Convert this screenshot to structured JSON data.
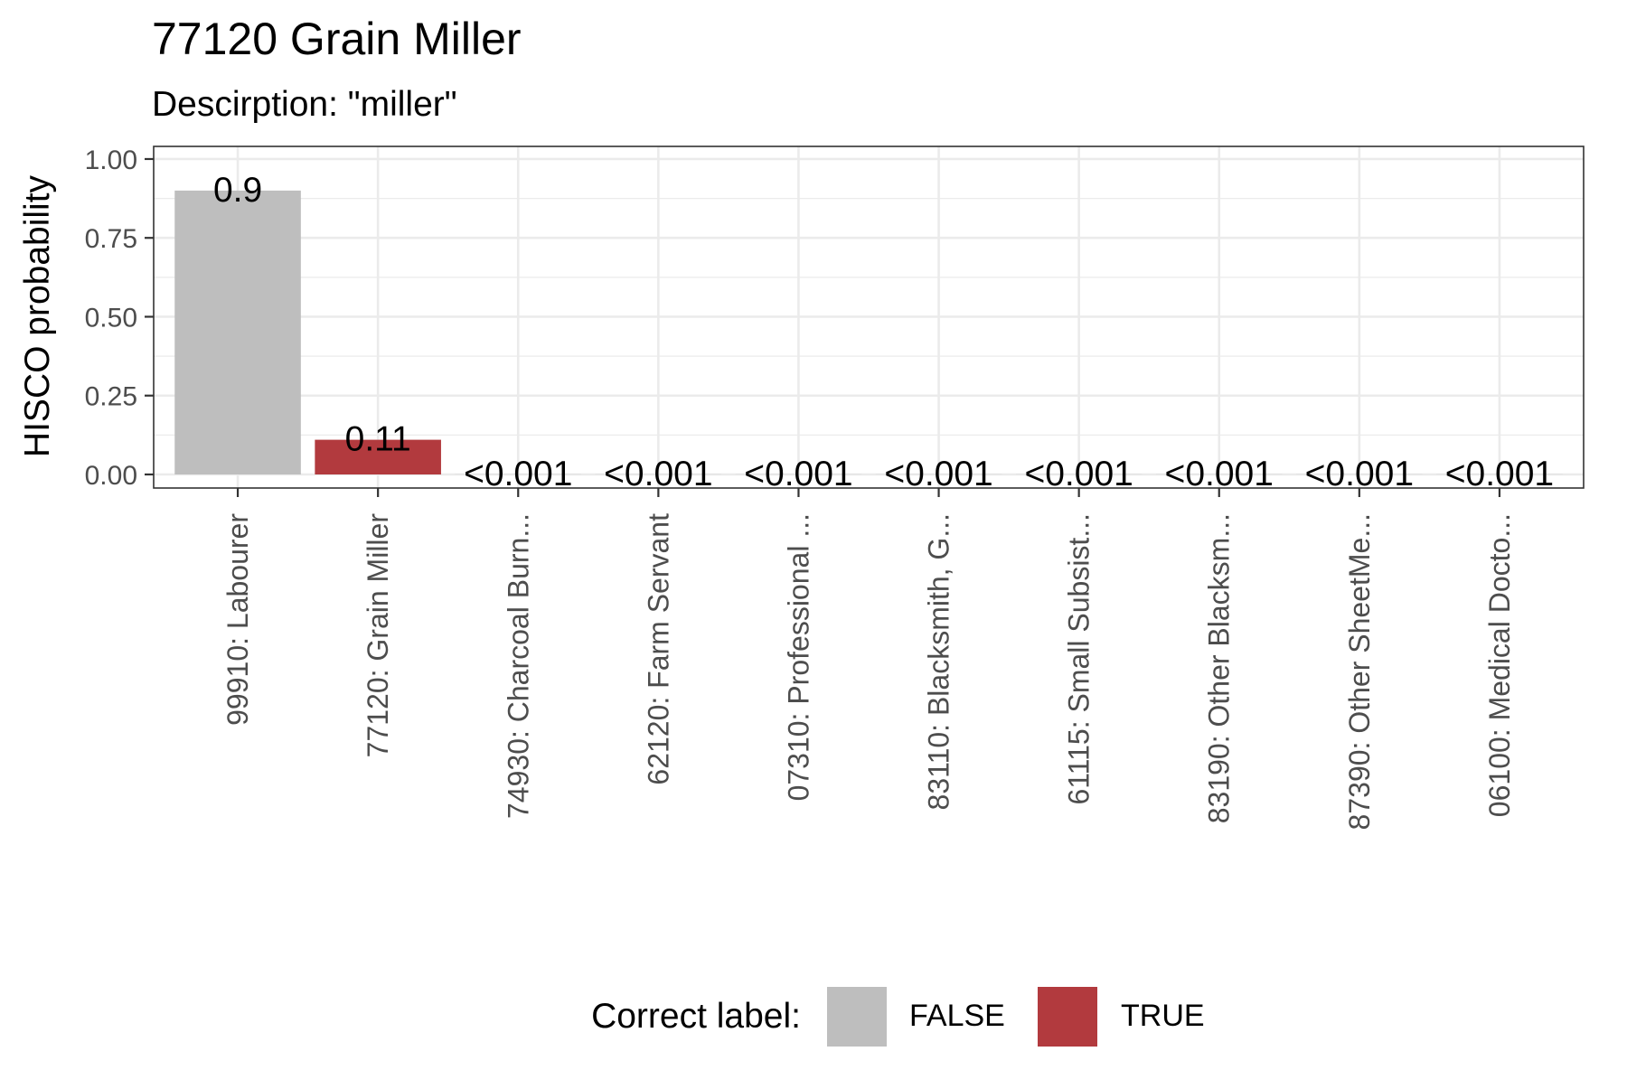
{
  "chart_data": {
    "type": "bar",
    "title": "77120 Grain Miller",
    "subtitle": "Descirption: \"miller\"",
    "xlabel": "",
    "ylabel": "HISCO probability",
    "ylim": [
      0,
      1.04
    ],
    "yticks": [
      0,
      0.25,
      0.5,
      0.75,
      1.0
    ],
    "ytick_labels": [
      "0.00",
      "0.25",
      "0.50",
      "0.75",
      "1.00"
    ],
    "grid": true,
    "categories": [
      "99910: Labourer",
      "77120: Grain Miller",
      "74930: Charcoal Burn...",
      "62120: Farm Servant",
      "07310: Professional ...",
      "83110: Blacksmith, G...",
      "61115: Small Subsist...",
      "83190: Other Blacksm...",
      "87390: Other SheetMe...",
      "06100: Medical Docto..."
    ],
    "values": [
      0.9,
      0.11,
      0.0005,
      0.0005,
      0.0005,
      0.0005,
      0.0005,
      0.0005,
      0.0005,
      0.0005
    ],
    "data_labels": [
      "0.9",
      "0.11",
      "<0.001",
      "<0.001",
      "<0.001",
      "<0.001",
      "<0.001",
      "<0.001",
      "<0.001",
      "<0.001"
    ],
    "correct": [
      false,
      true,
      false,
      false,
      false,
      false,
      false,
      false,
      false,
      false
    ],
    "legend": {
      "title": "Correct label:",
      "position": "bottom",
      "entries": [
        {
          "label": "FALSE",
          "color": "#bebebe"
        },
        {
          "label": "TRUE",
          "color": "#b23a3e"
        }
      ]
    },
    "colors": {
      "false": "#bebebe",
      "true": "#b23a3e",
      "grid": "#ebebeb",
      "panel_border": "#333333"
    }
  }
}
